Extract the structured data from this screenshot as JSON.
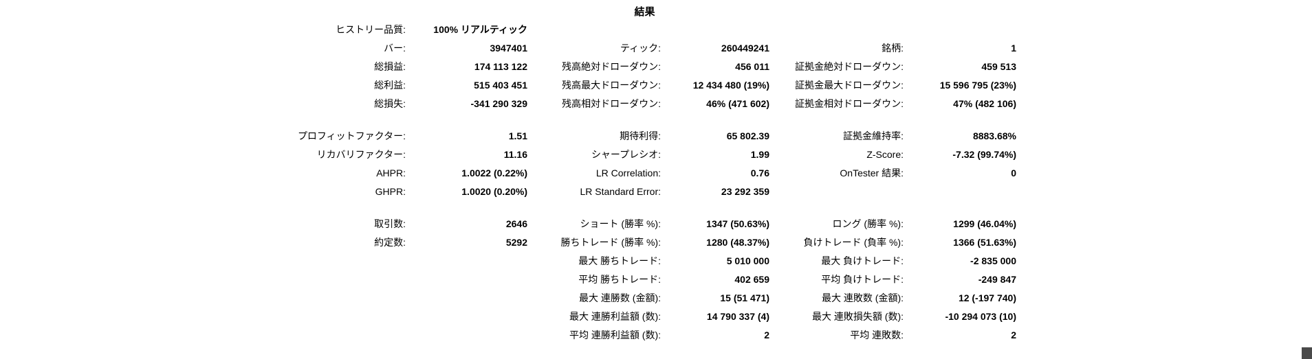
{
  "page": {
    "title": "結果",
    "background_color": "#ffffff",
    "text_color": "#000000",
    "corner_color": "#4a4a4a"
  },
  "report": {
    "rows": [
      {
        "gap": false,
        "cells": [
          "ヒストリー品質:",
          "100% リアルティック",
          "",
          "",
          "",
          ""
        ]
      },
      {
        "gap": false,
        "cells": [
          "バー:",
          "3947401",
          "ティック:",
          "260449241",
          "銘柄:",
          "1"
        ]
      },
      {
        "gap": false,
        "cells": [
          "総損益:",
          "174 113 122",
          "残高絶対ドローダウン:",
          "456 011",
          "証拠金絶対ドローダウン:",
          "459 513"
        ]
      },
      {
        "gap": false,
        "cells": [
          "総利益:",
          "515 403 451",
          "残高最大ドローダウン:",
          "12 434 480 (19%)",
          "証拠金最大ドローダウン:",
          "15 596 795 (23%)"
        ]
      },
      {
        "gap": false,
        "cells": [
          "総損失:",
          "-341 290 329",
          "残高相対ドローダウン:",
          "46% (471 602)",
          "証拠金相対ドローダウン:",
          "47% (482 106)"
        ]
      },
      {
        "gap": true,
        "cells": [
          "プロフィットファクター:",
          "1.51",
          "期待利得:",
          "65 802.39",
          "証拠金維持率:",
          "8883.68%"
        ]
      },
      {
        "gap": false,
        "cells": [
          "リカバリファクター:",
          "11.16",
          "シャープレシオ:",
          "1.99",
          "Z-Score:",
          "-7.32 (99.74%)"
        ]
      },
      {
        "gap": false,
        "cells": [
          "AHPR:",
          "1.0022 (0.22%)",
          "LR Correlation:",
          "0.76",
          "OnTester 結果:",
          "0"
        ]
      },
      {
        "gap": false,
        "cells": [
          "GHPR:",
          "1.0020 (0.20%)",
          "LR Standard Error:",
          "23 292 359",
          "",
          ""
        ]
      },
      {
        "gap": true,
        "cells": [
          "取引数:",
          "2646",
          "ショート (勝率 %):",
          "1347 (50.63%)",
          "ロング (勝率 %):",
          "1299 (46.04%)"
        ]
      },
      {
        "gap": false,
        "cells": [
          "約定数:",
          "5292",
          "勝ちトレード (勝率 %):",
          "1280 (48.37%)",
          "負けトレード (負率 %):",
          "1366 (51.63%)"
        ]
      },
      {
        "gap": false,
        "cells": [
          "",
          "",
          "最大 勝ちトレード:",
          "5 010 000",
          "最大 負けトレード:",
          "-2 835 000"
        ]
      },
      {
        "gap": false,
        "cells": [
          "",
          "",
          "平均 勝ちトレード:",
          "402 659",
          "平均 負けトレード:",
          "-249 847"
        ]
      },
      {
        "gap": false,
        "cells": [
          "",
          "",
          "最大 連勝数 (金額):",
          "15 (51 471)",
          "最大 連敗数 (金額):",
          "12 (-197 740)"
        ]
      },
      {
        "gap": false,
        "cells": [
          "",
          "",
          "最大 連勝利益額 (数):",
          "14 790 337 (4)",
          "最大 連敗損失額 (数):",
          "-10 294 073 (10)"
        ]
      },
      {
        "gap": false,
        "cells": [
          "",
          "",
          "平均 連勝利益額 (数):",
          "2",
          "平均 連敗数:",
          "2"
        ]
      }
    ]
  }
}
